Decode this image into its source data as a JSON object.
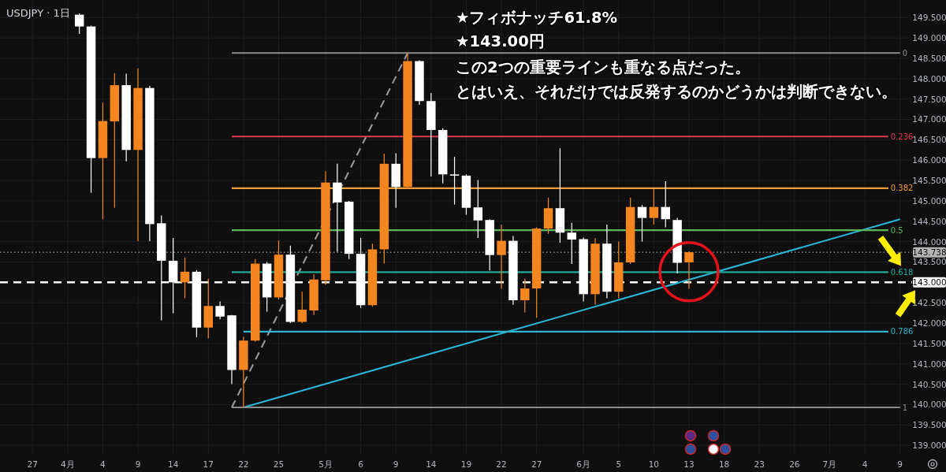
{
  "chart_data": {
    "type": "candlestick",
    "title": "USDJPY · 1日",
    "categories": [
      null,
      null,
      "27",
      null,
      null,
      "4月",
      null,
      null,
      "4",
      null,
      null,
      "9",
      null,
      null,
      "14",
      null,
      null,
      "17",
      null,
      null,
      "22",
      null,
      null,
      "25",
      null,
      null,
      null,
      "5月",
      null,
      null,
      "6",
      null,
      null,
      "9",
      null,
      null,
      "14",
      null,
      null,
      "19",
      null,
      null,
      "22",
      null,
      null,
      "27",
      null,
      null,
      null,
      "6月",
      null,
      null,
      "5",
      null,
      null,
      "10",
      null,
      null,
      "13",
      null,
      null,
      "18",
      null,
      null,
      "23",
      null,
      null,
      "26",
      null,
      null,
      "7月",
      null,
      null,
      "4",
      null,
      null,
      "9"
    ],
    "ohlc": [
      null,
      null,
      null,
      null,
      null,
      null,
      [
        149.57,
        149.6,
        149.1,
        149.28
      ],
      [
        149.28,
        149.3,
        145.2,
        146.05
      ],
      [
        146.05,
        147.41,
        144.55,
        146.96
      ],
      [
        146.95,
        148.13,
        144.83,
        147.84
      ],
      [
        147.84,
        148.12,
        145.97,
        146.25
      ],
      [
        146.25,
        148.25,
        144.01,
        147.77
      ],
      [
        147.77,
        147.82,
        144.01,
        144.43
      ],
      [
        144.45,
        144.64,
        142.07,
        143.53
      ],
      [
        143.53,
        144.09,
        142.24,
        143.0
      ],
      [
        143.0,
        143.61,
        142.61,
        143.26
      ],
      [
        143.26,
        143.3,
        141.65,
        141.89
      ],
      [
        141.89,
        143.09,
        141.63,
        142.42
      ],
      [
        142.42,
        142.53,
        142.09,
        142.16
      ],
      [
        142.19,
        142.2,
        140.5,
        140.85
      ],
      [
        140.85,
        141.66,
        139.93,
        141.57
      ],
      [
        141.57,
        143.57,
        141.54,
        143.46
      ],
      [
        143.46,
        143.5,
        142.28,
        142.63
      ],
      [
        142.63,
        144.03,
        142.58,
        143.68
      ],
      [
        143.68,
        143.9,
        142.0,
        142.03
      ],
      [
        142.03,
        142.77,
        142.0,
        142.33
      ],
      [
        142.31,
        143.2,
        142.2,
        143.07
      ],
      [
        143.05,
        145.73,
        142.94,
        145.45
      ],
      [
        145.45,
        145.91,
        143.75,
        144.96
      ],
      [
        144.98,
        145.0,
        143.57,
        143.7
      ],
      [
        143.7,
        144.09,
        142.37,
        142.44
      ],
      [
        142.44,
        143.95,
        142.4,
        143.81
      ],
      [
        143.81,
        146.16,
        143.46,
        145.91
      ],
      [
        145.91,
        146.17,
        144.83,
        145.34
      ],
      [
        145.34,
        148.63,
        145.3,
        148.43
      ],
      [
        148.43,
        148.45,
        147.36,
        147.45
      ],
      [
        147.45,
        147.65,
        145.6,
        146.74
      ],
      [
        146.74,
        146.78,
        145.43,
        145.65
      ],
      [
        145.65,
        146.08,
        144.91,
        145.62
      ],
      [
        145.62,
        145.65,
        144.66,
        144.83
      ],
      [
        144.84,
        145.51,
        144.09,
        144.52
      ],
      [
        144.53,
        144.55,
        143.29,
        143.67
      ],
      [
        143.67,
        144.42,
        142.84,
        144.02
      ],
      [
        144.02,
        144.14,
        142.45,
        142.56
      ],
      [
        142.56,
        143.09,
        142.26,
        142.85
      ],
      [
        142.85,
        144.35,
        142.13,
        144.32
      ],
      [
        144.32,
        145.08,
        144.19,
        144.82
      ],
      [
        144.82,
        146.29,
        143.97,
        144.22
      ],
      [
        144.22,
        144.46,
        143.45,
        144.05
      ],
      [
        144.06,
        144.1,
        142.53,
        142.71
      ],
      [
        142.71,
        144.09,
        142.45,
        143.95
      ],
      [
        143.95,
        144.42,
        142.61,
        142.77
      ],
      [
        142.77,
        144.0,
        142.61,
        143.49
      ],
      [
        143.49,
        145.08,
        143.45,
        144.85
      ],
      [
        144.85,
        144.9,
        144.0,
        144.58
      ],
      [
        144.58,
        145.29,
        144.42,
        144.85
      ],
      [
        144.85,
        145.48,
        144.35,
        144.55
      ],
      [
        144.53,
        144.58,
        143.22,
        143.48
      ],
      [
        143.49,
        143.76,
        142.84,
        143.74
      ],
      null,
      null,
      null,
      null,
      null,
      null,
      null,
      null,
      null,
      null,
      null,
      null,
      null,
      null,
      null,
      null,
      null,
      null
    ],
    "colors": [
      null,
      null,
      null,
      null,
      null,
      null,
      "#ffffff",
      "#ffffff",
      "#f5861f",
      "#f5861f",
      "#ffffff",
      "#f5861f",
      "#ffffff",
      "#ffffff",
      "#ffffff",
      "#f5861f",
      "#ffffff",
      "#f5861f",
      "#ffffff",
      "#ffffff",
      "#f5861f",
      "#f5861f",
      "#ffffff",
      "#f5861f",
      "#ffffff",
      "#f5861f",
      "#f5861f",
      "#f5861f",
      "#ffffff",
      "#ffffff",
      "#ffffff",
      "#f5861f",
      "#f5861f",
      "#ffffff",
      "#f5861f",
      "#ffffff",
      "#ffffff",
      "#ffffff",
      "#ffffff",
      "#ffffff",
      "#ffffff",
      "#ffffff",
      "#f5861f",
      "#ffffff",
      "#f5861f",
      "#f5861f",
      "#f5861f",
      "#ffffff",
      "#ffffff",
      "#ffffff",
      "#f5861f",
      "#ffffff",
      "#f5861f",
      "#f5861f",
      "#ffffff",
      "#f5861f",
      "#ffffff",
      "#ffffff",
      "#f5861f",
      null,
      null,
      null,
      null,
      null,
      null,
      null,
      null,
      null,
      null,
      null,
      null,
      null,
      null,
      null,
      null,
      null,
      null
    ],
    "series": [
      {
        "type": "line",
        "color": "#9a9a9a",
        "line_style": "dashed",
        "values": [
          null,
          null,
          null,
          null,
          null,
          null,
          null,
          null,
          null,
          null,
          null,
          null,
          null,
          null,
          null,
          null,
          null,
          null,
          null,
          139.93,
          null,
          null,
          null,
          null,
          null,
          null,
          null,
          null,
          null,
          null,
          null,
          null,
          null,
          null,
          148.63,
          null,
          null,
          null,
          null,
          null,
          null,
          null,
          null,
          null,
          null,
          null,
          null,
          null,
          null,
          null,
          null,
          null,
          null,
          null,
          null,
          null,
          null,
          null,
          null,
          null,
          null,
          null,
          null,
          null,
          null,
          null,
          null,
          null,
          null,
          null,
          null,
          null,
          null,
          null,
          null,
          null,
          null
        ]
      },
      {
        "type": "line",
        "color": "#29b6d6",
        "line_style": "solid",
        "values": [
          null,
          null,
          null,
          null,
          null,
          null,
          null,
          null,
          null,
          null,
          null,
          null,
          null,
          null,
          null,
          null,
          null,
          null,
          null,
          null,
          139.93,
          null,
          null,
          null,
          null,
          null,
          null,
          null,
          null,
          null,
          null,
          null,
          null,
          null,
          null,
          null,
          null,
          null,
          null,
          null,
          null,
          null,
          null,
          null,
          null,
          null,
          null,
          null,
          null,
          null,
          null,
          null,
          null,
          null,
          null,
          null,
          null,
          null,
          null,
          null,
          null,
          null,
          null,
          null,
          null,
          null,
          null,
          null,
          null,
          null,
          null,
          null,
          null,
          null,
          null,
          null,
          144.55
        ]
      },
      {
        "type": "line",
        "name": "0",
        "color": "#8c8c8c",
        "line_style": "solid",
        "values": [
          null,
          null,
          null,
          null,
          null,
          null,
          null,
          null,
          null,
          null,
          null,
          null,
          null,
          null,
          null,
          null,
          null,
          null,
          null,
          148.63,
          null,
          null,
          null,
          null,
          null,
          null,
          null,
          null,
          null,
          null,
          null,
          null,
          null,
          null,
          null,
          null,
          null,
          null,
          null,
          null,
          null,
          null,
          null,
          null,
          null,
          null,
          null,
          null,
          null,
          null,
          null,
          null,
          null,
          null,
          null,
          null,
          null,
          null,
          null,
          null,
          null,
          null,
          null,
          null,
          null,
          null,
          null,
          null,
          null,
          null,
          null,
          null,
          null,
          null,
          null,
          null,
          148.63
        ]
      },
      {
        "type": "line",
        "name": "0.236",
        "color": "#e23a4e",
        "line_style": "solid",
        "values": [
          null,
          null,
          null,
          null,
          null,
          null,
          null,
          null,
          null,
          null,
          null,
          null,
          null,
          null,
          null,
          null,
          null,
          null,
          null,
          146.58,
          null,
          null,
          null,
          null,
          null,
          null,
          null,
          null,
          null,
          null,
          null,
          null,
          null,
          null,
          null,
          null,
          null,
          null,
          null,
          null,
          null,
          null,
          null,
          null,
          null,
          null,
          null,
          null,
          null,
          null,
          null,
          null,
          null,
          null,
          null,
          null,
          null,
          null,
          null,
          null,
          null,
          null,
          null,
          null,
          null,
          null,
          null,
          null,
          null,
          null,
          null,
          null,
          null,
          null,
          null,
          146.58,
          null
        ]
      },
      {
        "type": "line",
        "name": "0.382",
        "color": "#f59d38",
        "line_style": "solid",
        "values": [
          null,
          null,
          null,
          null,
          null,
          null,
          null,
          null,
          null,
          null,
          null,
          null,
          null,
          null,
          null,
          null,
          null,
          null,
          null,
          145.31,
          null,
          null,
          null,
          null,
          null,
          null,
          null,
          null,
          null,
          null,
          null,
          null,
          null,
          null,
          null,
          null,
          null,
          null,
          null,
          null,
          null,
          null,
          null,
          null,
          null,
          null,
          null,
          null,
          null,
          null,
          null,
          null,
          null,
          null,
          null,
          null,
          null,
          null,
          null,
          null,
          null,
          null,
          null,
          null,
          null,
          null,
          null,
          null,
          null,
          null,
          null,
          null,
          null,
          null,
          null,
          145.31,
          null
        ]
      },
      {
        "type": "line",
        "name": "0.5",
        "color": "#5cb85c",
        "line_style": "solid",
        "values": [
          null,
          null,
          null,
          null,
          null,
          null,
          null,
          null,
          null,
          null,
          null,
          null,
          null,
          null,
          null,
          null,
          null,
          null,
          null,
          144.28,
          null,
          null,
          null,
          null,
          null,
          null,
          null,
          null,
          null,
          null,
          null,
          null,
          null,
          null,
          null,
          null,
          null,
          null,
          null,
          null,
          null,
          null,
          null,
          null,
          null,
          null,
          null,
          null,
          null,
          null,
          null,
          null,
          null,
          null,
          null,
          null,
          null,
          null,
          null,
          null,
          null,
          null,
          null,
          null,
          null,
          null,
          null,
          null,
          null,
          null,
          null,
          null,
          null,
          null,
          null,
          144.28,
          null
        ]
      },
      {
        "type": "line",
        "name": "0.618",
        "color": "#22a99a",
        "line_style": "solid",
        "values": [
          null,
          null,
          null,
          null,
          null,
          null,
          null,
          null,
          null,
          null,
          null,
          null,
          null,
          null,
          null,
          null,
          null,
          null,
          null,
          143.25,
          null,
          null,
          null,
          null,
          null,
          null,
          null,
          null,
          null,
          null,
          null,
          null,
          null,
          null,
          null,
          null,
          null,
          null,
          null,
          null,
          null,
          null,
          null,
          null,
          null,
          null,
          null,
          null,
          null,
          null,
          null,
          null,
          null,
          null,
          null,
          null,
          null,
          null,
          null,
          null,
          null,
          null,
          null,
          null,
          null,
          null,
          null,
          null,
          null,
          null,
          null,
          null,
          null,
          null,
          null,
          143.25,
          null
        ]
      },
      {
        "type": "line",
        "name": "0.786",
        "color": "#2cb5d0",
        "line_style": "solid",
        "values": [
          null,
          null,
          null,
          null,
          null,
          null,
          null,
          null,
          null,
          null,
          null,
          null,
          null,
          null,
          null,
          null,
          null,
          null,
          null,
          null,
          141.79,
          null,
          null,
          null,
          null,
          null,
          null,
          null,
          null,
          null,
          null,
          null,
          null,
          null,
          null,
          null,
          null,
          null,
          null,
          null,
          null,
          null,
          null,
          null,
          null,
          null,
          null,
          null,
          null,
          null,
          null,
          null,
          null,
          null,
          null,
          null,
          null,
          null,
          null,
          null,
          null,
          null,
          null,
          null,
          null,
          null,
          null,
          null,
          null,
          null,
          null,
          null,
          null,
          null,
          null,
          141.79,
          null
        ]
      },
      {
        "type": "line",
        "name": "1",
        "color": "#8c8c8c",
        "line_style": "solid",
        "values": [
          null,
          null,
          null,
          null,
          null,
          null,
          null,
          null,
          null,
          null,
          null,
          null,
          null,
          null,
          null,
          null,
          null,
          null,
          null,
          139.93,
          null,
          null,
          null,
          null,
          null,
          null,
          null,
          null,
          null,
          null,
          null,
          null,
          null,
          null,
          null,
          null,
          null,
          null,
          null,
          null,
          null,
          null,
          null,
          null,
          null,
          null,
          null,
          null,
          null,
          null,
          null,
          null,
          null,
          null,
          null,
          null,
          null,
          null,
          null,
          null,
          null,
          null,
          null,
          null,
          null,
          null,
          null,
          null,
          null,
          null,
          null,
          null,
          null,
          null,
          null,
          null,
          139.93
        ]
      }
    ],
    "ylim": [
      138.79,
      149.93
    ],
    "yticks": [
      {
        "value": 139,
        "label": "139.000"
      },
      {
        "value": 139.5,
        "label": "139.500"
      },
      {
        "value": 140,
        "label": "140.000"
      },
      {
        "value": 140.5,
        "label": "140.500"
      },
      {
        "value": 141,
        "label": "141.000"
      },
      {
        "value": 141.5,
        "label": "141.500"
      },
      {
        "value": 142,
        "label": "142.000"
      },
      {
        "value": 142.5,
        "label": "142.500"
      },
      {
        "value": 143.5,
        "label": "143.500"
      },
      {
        "value": 144,
        "label": "144.000"
      },
      {
        "value": 144.5,
        "label": "144.500"
      },
      {
        "value": 145,
        "label": "145.000"
      },
      {
        "value": 145.5,
        "label": "145.500"
      },
      {
        "value": 146,
        "label": "146.000"
      },
      {
        "value": 146.5,
        "label": "146.500"
      },
      {
        "value": 147,
        "label": "147.000"
      },
      {
        "value": 147.5,
        "label": "147.500"
      },
      {
        "value": 148,
        "label": "148.000"
      },
      {
        "value": 148.5,
        "label": "148.500"
      },
      {
        "value": 149,
        "label": "149.000"
      },
      {
        "value": 149.5,
        "label": "149.500"
      }
    ],
    "grid": true,
    "ref_lines": [
      {
        "axis": "y",
        "value": 143,
        "label": "143.000",
        "color": "#ffffff",
        "line_style": "dashed"
      },
      {
        "axis": "y",
        "value": 143.738,
        "label": "143.738",
        "color": "#b4b4b4",
        "line_style": "dotted"
      }
    ],
    "annotations": [
      "★フィボナッチ61.8%",
      "★143.00円",
      "この2つの重要ラインも重なる点だった。",
      "とはいえ、それだけでは反発するのかどうかは判断できない。"
    ]
  }
}
